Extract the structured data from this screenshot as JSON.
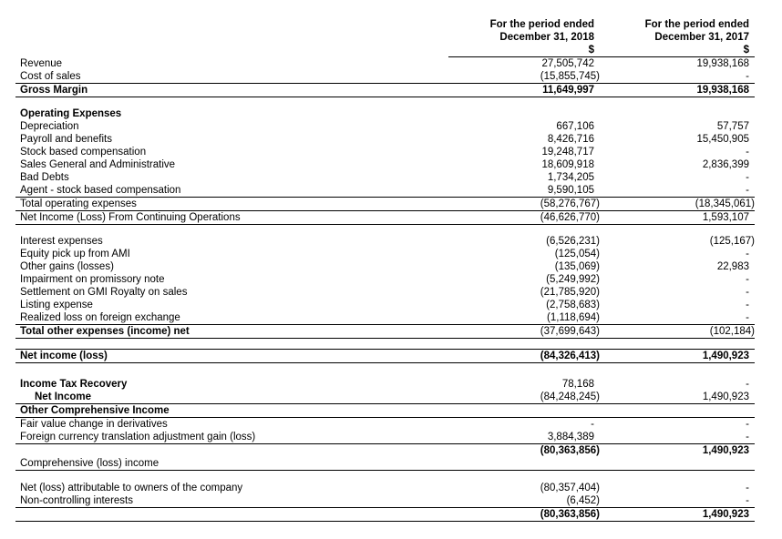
{
  "document": {
    "background_color": "#ffffff",
    "text_color": "#000000",
    "line_color": "#000000"
  },
  "table": {
    "header": {
      "col_2018": {
        "line1": "For the period ended",
        "line2": "December 31, 2018",
        "currency_symbol": "$"
      },
      "col_2017": {
        "line1": "For the period ended",
        "line2": "December 31, 2017",
        "currency_symbol": "$"
      }
    },
    "rows": [
      {
        "label": "Revenue",
        "v2018": "27,505,742",
        "v2017": "19,938,168"
      },
      {
        "label": "Cost of sales",
        "v2018": "(15,855,745)",
        "v2017": "-",
        "line_below": true
      },
      {
        "label": "Gross Margin",
        "v2018": "11,649,997",
        "v2017": "19,938,168",
        "bold_label": true,
        "bold_values": true,
        "line_below": true
      },
      {
        "spacer": 11
      },
      {
        "label": "Operating Expenses",
        "bold_label": true
      },
      {
        "label": "Depreciation",
        "v2018": "667,106",
        "v2017": "57,757"
      },
      {
        "label": "Payroll and benefits",
        "v2018": "8,426,716",
        "v2017": "15,450,905"
      },
      {
        "label": "Stock based compensation",
        "v2018": "19,248,717",
        "v2017": "-"
      },
      {
        "label": "Sales General and Administrative",
        "v2018": "18,609,918",
        "v2017": "2,836,399"
      },
      {
        "label": "Bad Debts",
        "v2018": "1,734,205",
        "v2017": "-"
      },
      {
        "label": "Agent - stock based compensation",
        "v2018": "9,590,105",
        "v2017": "-",
        "line_below": true
      },
      {
        "label": "Total operating expenses",
        "v2018": "(58,276,767)",
        "v2017": "(18,345,061)",
        "line_below": true
      },
      {
        "label": "Net Income (Loss) From Continuing Operations",
        "v2018": "(46,626,770)",
        "v2017": "1,593,107",
        "line_below": true
      },
      {
        "spacer": 12
      },
      {
        "label": "Interest expenses",
        "v2018": "(6,526,231)",
        "v2017": "(125,167)"
      },
      {
        "label": "Equity pick up from AMI",
        "v2018": "(125,054)",
        "v2017": "-"
      },
      {
        "label": "Other gains (losses)",
        "v2018": "(135,069)",
        "v2017": "22,983"
      },
      {
        "label": "Impairment on promissory note",
        "v2018": "(5,249,992)",
        "v2017": "-"
      },
      {
        "label": "Settlement on GMI Royalty on sales",
        "v2018": "(21,785,920)",
        "v2017": "-"
      },
      {
        "label": "Listing expense",
        "v2018": "(2,758,683)",
        "v2017": "-"
      },
      {
        "label": "Realized loss on foreign exchange",
        "v2018": "(1,118,694)",
        "v2017": "-",
        "line_below": true
      },
      {
        "label": "Total other expenses (income) net",
        "v2018": "(37,699,643)",
        "v2017": "(102,184)",
        "bold_label": true,
        "line_below": true
      },
      {
        "spacer": 12
      },
      {
        "label": "Net income (loss)",
        "v2018": "(84,326,413)",
        "v2017": "1,490,923",
        "bold_label": true,
        "bold_values": true,
        "line_above": true,
        "line_below": true
      },
      {
        "spacer": 16
      },
      {
        "label": "Income Tax Recovery",
        "v2018": "78,168",
        "v2017": "-",
        "bold_label": true
      },
      {
        "label": "Net Income",
        "v2018": "(84,248,245)",
        "v2017": "1,490,923",
        "bold_label": true,
        "indent": true,
        "line_below": true
      },
      {
        "label": "Other Comprehensive Income",
        "bold_label": true,
        "line_below": true
      },
      {
        "label": "Fair value change in derivatives",
        "v2018": "-",
        "v2017": "-"
      },
      {
        "label": "Foreign currency translation adjustment gain (loss)",
        "v2018": "3,884,389",
        "v2017": "-",
        "line_below": true
      },
      {
        "label": "",
        "v2018": "(80,363,856)",
        "v2017": "1,490,923",
        "bold_values": true
      },
      {
        "label": "Comprehensive (loss) income",
        "line_below": true
      },
      {
        "spacer": 13
      },
      {
        "label": "Net (loss) attributable to owners of the company",
        "v2018": "(80,357,404)",
        "v2017": "-"
      },
      {
        "label": "Non-controlling interests",
        "v2018": "(6,452)",
        "v2017": "-",
        "line_below": true
      },
      {
        "label": "",
        "v2018": "(80,363,856)",
        "v2017": "1,490,923",
        "bold_values": true,
        "line_below": true
      }
    ]
  }
}
